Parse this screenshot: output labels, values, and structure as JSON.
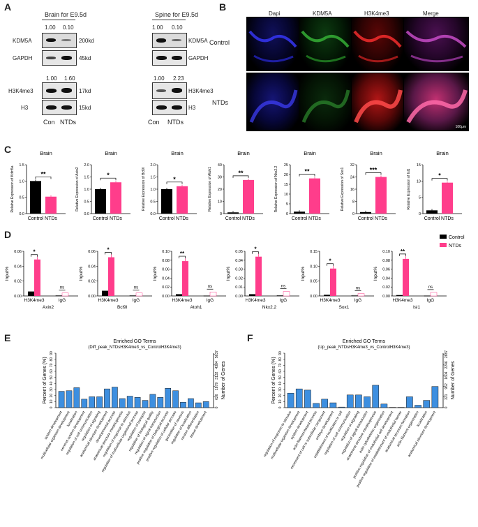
{
  "panels": {
    "A": "A",
    "B": "B",
    "C": "C",
    "D": "D",
    "E": "E",
    "F": "F"
  },
  "panel_a": {
    "brain_title": "Brain for E9.5d",
    "spine_title": "Spine for E9.5d",
    "kdm5a_ratio_brain": [
      "1.00",
      "0.10"
    ],
    "kdm5a_ratio_spine": [
      "1.00",
      "0.10"
    ],
    "h3k4me3_ratio_brain": [
      "1.00",
      "1.60"
    ],
    "h3k4me3_ratio_spine": [
      "1.00",
      "2.23"
    ],
    "left_labels": [
      "KDM5A",
      "GAPDH",
      "H3K4me3",
      "H3"
    ],
    "mw_labels": [
      "200kd",
      "45kd",
      "17kd",
      "15kd"
    ],
    "right_labels": [
      "KDM5A",
      "GAPDH",
      "H3K4me3",
      "H3"
    ],
    "x_labels": [
      "Con",
      "NTDs"
    ]
  },
  "panel_b": {
    "col_headers": [
      "Dapi",
      "KDM5A",
      "H3K4me3",
      "Merge"
    ],
    "row_labels": [
      "Control",
      "NTDs"
    ],
    "scale_text": "100μm"
  },
  "chart_data": [
    {
      "type": "bar",
      "group": "C",
      "title": "Brain",
      "ylabel": "Relative Expression of Kdm5a",
      "categories": [
        "Control",
        "NTDs"
      ],
      "values": [
        1.0,
        0.52
      ],
      "ylim": [
        0,
        1.5
      ],
      "yticks": [
        "0.0",
        "0.5",
        "1.0",
        "1.5"
      ],
      "sig": "**",
      "colors": [
        "#000000",
        "#ff3d8b"
      ]
    },
    {
      "type": "bar",
      "group": "C",
      "title": "Brain",
      "ylabel": "Relative Expression of Axin2",
      "categories": [
        "Control",
        "NTDs"
      ],
      "values": [
        1.0,
        1.28
      ],
      "ylim": [
        0,
        2.0
      ],
      "yticks": [
        "0.0",
        "0.5",
        "1.0",
        "1.5",
        "2.0"
      ],
      "sig": "*",
      "colors": [
        "#000000",
        "#ff3d8b"
      ]
    },
    {
      "type": "bar",
      "group": "C",
      "title": "Brain",
      "ylabel": "Relative Expression of Bcl9l",
      "categories": [
        "Control",
        "NTDs"
      ],
      "values": [
        1.0,
        1.12
      ],
      "ylim": [
        0,
        2.0
      ],
      "yticks": [
        "0.0",
        "0.5",
        "1.0",
        "1.5",
        "2.0"
      ],
      "sig": "*",
      "colors": [
        "#000000",
        "#ff3d8b"
      ]
    },
    {
      "type": "bar",
      "group": "C",
      "title": "Brain",
      "ylabel": "Relative Expression of Atoh1",
      "categories": [
        "Control",
        "NTDs"
      ],
      "values": [
        1.0,
        27.5
      ],
      "ylim": [
        0,
        40
      ],
      "yticks": [
        "0",
        "10",
        "20",
        "30",
        "40"
      ],
      "sig": "**",
      "colors": [
        "#000000",
        "#ff3d8b"
      ]
    },
    {
      "type": "bar",
      "group": "C",
      "title": "Brain",
      "ylabel": "Relative Expression of Nkx2.2",
      "categories": [
        "Control",
        "NTDs"
      ],
      "values": [
        1.0,
        18.0
      ],
      "ylim": [
        0,
        25
      ],
      "yticks": [
        "0",
        "5",
        "10",
        "15",
        "20",
        "25"
      ],
      "sig": "**",
      "colors": [
        "#000000",
        "#ff3d8b"
      ]
    },
    {
      "type": "bar",
      "group": "C",
      "title": "Brain",
      "ylabel": "Relative Expression of Sox1",
      "categories": [
        "Control",
        "NTDs"
      ],
      "values": [
        1.0,
        24.0
      ],
      "ylim": [
        0,
        32
      ],
      "yticks": [
        "0",
        "8",
        "16",
        "24",
        "32"
      ],
      "sig": "***",
      "colors": [
        "#000000",
        "#ff3d8b"
      ]
    },
    {
      "type": "bar",
      "group": "C",
      "title": "Brain",
      "ylabel": "Relative Expression of Isl1",
      "categories": [
        "Control",
        "NTDs"
      ],
      "values": [
        1.0,
        9.5
      ],
      "ylim": [
        0,
        15
      ],
      "yticks": [
        "0",
        "5",
        "10",
        "15"
      ],
      "sig": "*",
      "colors": [
        "#000000",
        "#ff3d8b"
      ]
    },
    {
      "type": "bar",
      "group": "D",
      "xlabel": "Axin2",
      "ylabel": "Input%",
      "categories": [
        "H3K4me3",
        "IgG"
      ],
      "control": [
        0.006,
        0.0005
      ],
      "ntds": [
        0.049,
        0.004
      ],
      "ylim": [
        0,
        0.06
      ],
      "yticks": [
        "0.00",
        "0.02",
        "0.04",
        "0.06"
      ],
      "sig": [
        "*",
        "ns"
      ]
    },
    {
      "type": "bar",
      "group": "D",
      "xlabel": "Bcl9l",
      "ylabel": "Input%",
      "categories": [
        "H3K4me3",
        "IgG"
      ],
      "control": [
        0.007,
        0.0005
      ],
      "ntds": [
        0.052,
        0.004
      ],
      "ylim": [
        0,
        0.06
      ],
      "yticks": [
        "0.00",
        "0.02",
        "0.04",
        "0.06"
      ],
      "sig": [
        "*",
        "ns"
      ]
    },
    {
      "type": "bar",
      "group": "D",
      "xlabel": "Atoh1",
      "ylabel": "Input%",
      "categories": [
        "H3K4me3",
        "IgG"
      ],
      "control": [
        0.004,
        0.0005
      ],
      "ntds": [
        0.078,
        0.009
      ],
      "ylim": [
        0,
        0.1
      ],
      "yticks": [
        "0.00",
        "0.02",
        "0.04",
        "0.06",
        "0.08",
        "0.10"
      ],
      "sig": [
        "**",
        "ns"
      ]
    },
    {
      "type": "bar",
      "group": "D",
      "xlabel": "Nkx2.2",
      "ylabel": "Input%",
      "categories": [
        "H3K4me3",
        "IgG"
      ],
      "control": [
        0.002,
        0.0005
      ],
      "ntds": [
        0.044,
        0.005
      ],
      "ylim": [
        0,
        0.05
      ],
      "yticks": [
        "0.00",
        "0.01",
        "0.02",
        "0.03",
        "0.04",
        "0.05"
      ],
      "sig": [
        "*",
        "ns"
      ]
    },
    {
      "type": "bar",
      "group": "D",
      "xlabel": "Sox1",
      "ylabel": "Input%",
      "categories": [
        "H3K4me3",
        "IgG"
      ],
      "control": [
        0.004,
        0.002
      ],
      "ntds": [
        0.092,
        0.008
      ],
      "ylim": [
        0,
        0.15
      ],
      "yticks": [
        "0.00",
        "0.05",
        "0.10",
        "0.15"
      ],
      "sig": [
        "*",
        "ns"
      ]
    },
    {
      "type": "bar",
      "group": "D",
      "xlabel": "Isl1",
      "ylabel": "Input%",
      "categories": [
        "H3K4me3",
        "IgG"
      ],
      "control": [
        0.002,
        0.0005
      ],
      "ntds": [
        0.083,
        0.008
      ],
      "ylim": [
        0,
        0.1
      ],
      "yticks": [
        "0.00",
        "0.02",
        "0.04",
        "0.06",
        "0.08",
        "0.10"
      ],
      "sig": [
        "**",
        "ns"
      ]
    },
    {
      "type": "bar",
      "group": "E",
      "title": "Enriched GO Terms",
      "subtitle": "(Diff_peak_NTDsH3K4me3_vs_ControlH3K4me3)",
      "ylabel": "Percent of Genes (%)",
      "ylabel2": "Number of Genes",
      "ylim": [
        0,
        90
      ],
      "yticks": [
        "0",
        "10",
        "20",
        "30",
        "40",
        "50",
        "60",
        "70",
        "80",
        "90"
      ],
      "y2ticks": [
        "0",
        "626",
        "1879",
        "3132",
        "4384",
        "5637"
      ],
      "categories": [
        "system development",
        "multicellular organism development",
        "localization",
        "nervous system development",
        "regulation of cell communication",
        "regulation of signaling",
        "anatomical structure development",
        "developmental process",
        "anatomical structure morphogenesis",
        "regulation of response to stimulus",
        "regulation of multicellular organismal process",
        "regulation of transport",
        "regulation of biological quality",
        "regulation of signal transduction",
        "positive regulation of biological process",
        "positive regulation of cellular process",
        "generation of neurons",
        "regulation of localization",
        "neuron differentiation",
        "tissue development"
      ],
      "values": [
        27,
        28,
        33,
        14,
        18,
        18,
        31,
        34,
        15,
        19,
        17,
        12,
        22,
        17,
        32,
        28,
        9,
        15,
        8,
        10
      ]
    },
    {
      "type": "bar",
      "group": "F",
      "title": "Enriched GO Terms",
      "subtitle": "(Up_peak_NTDsH3K4me3_vs_ControlH3K4me3)",
      "ylabel": "Percent of Genes (%)",
      "ylabel2": "Number of Genes",
      "ylim": [
        0,
        90
      ],
      "yticks": [
        "0",
        "10",
        "20",
        "30",
        "40",
        "50",
        "60",
        "70",
        "80",
        "90"
      ],
      "y2ticks": [
        "0",
        "321",
        "962",
        "1604",
        "2246",
        "2887"
      ],
      "categories": [
        "regulation of response to stimulus",
        "multicellular organism development",
        "system development",
        "actin filament-based process",
        "movement of cell or subcellular component",
        "embryo development",
        "establishment of localization in cell",
        "regulation of cell communication",
        "regulation of signaling",
        "regulation of signal transduction",
        "anatomical structure morphogenesis",
        "actin cytoskeleton organization",
        "positive regulation of endothelial cell development",
        "positive regulation of establishment of endothelial barrier",
        "anatomical structure formation",
        "actin filament organization",
        "localization",
        "anatomical structure development"
      ],
      "values": [
        24,
        31,
        29,
        7,
        14,
        8,
        1,
        21,
        21,
        18,
        37,
        6,
        0.5,
        0.5,
        18,
        4,
        12,
        35
      ]
    }
  ],
  "legend_d": [
    "Control",
    "NTDs"
  ],
  "colors": {
    "control": "#000000",
    "ntds": "#ff3d8b",
    "go_bar": "#3d8fe0"
  }
}
